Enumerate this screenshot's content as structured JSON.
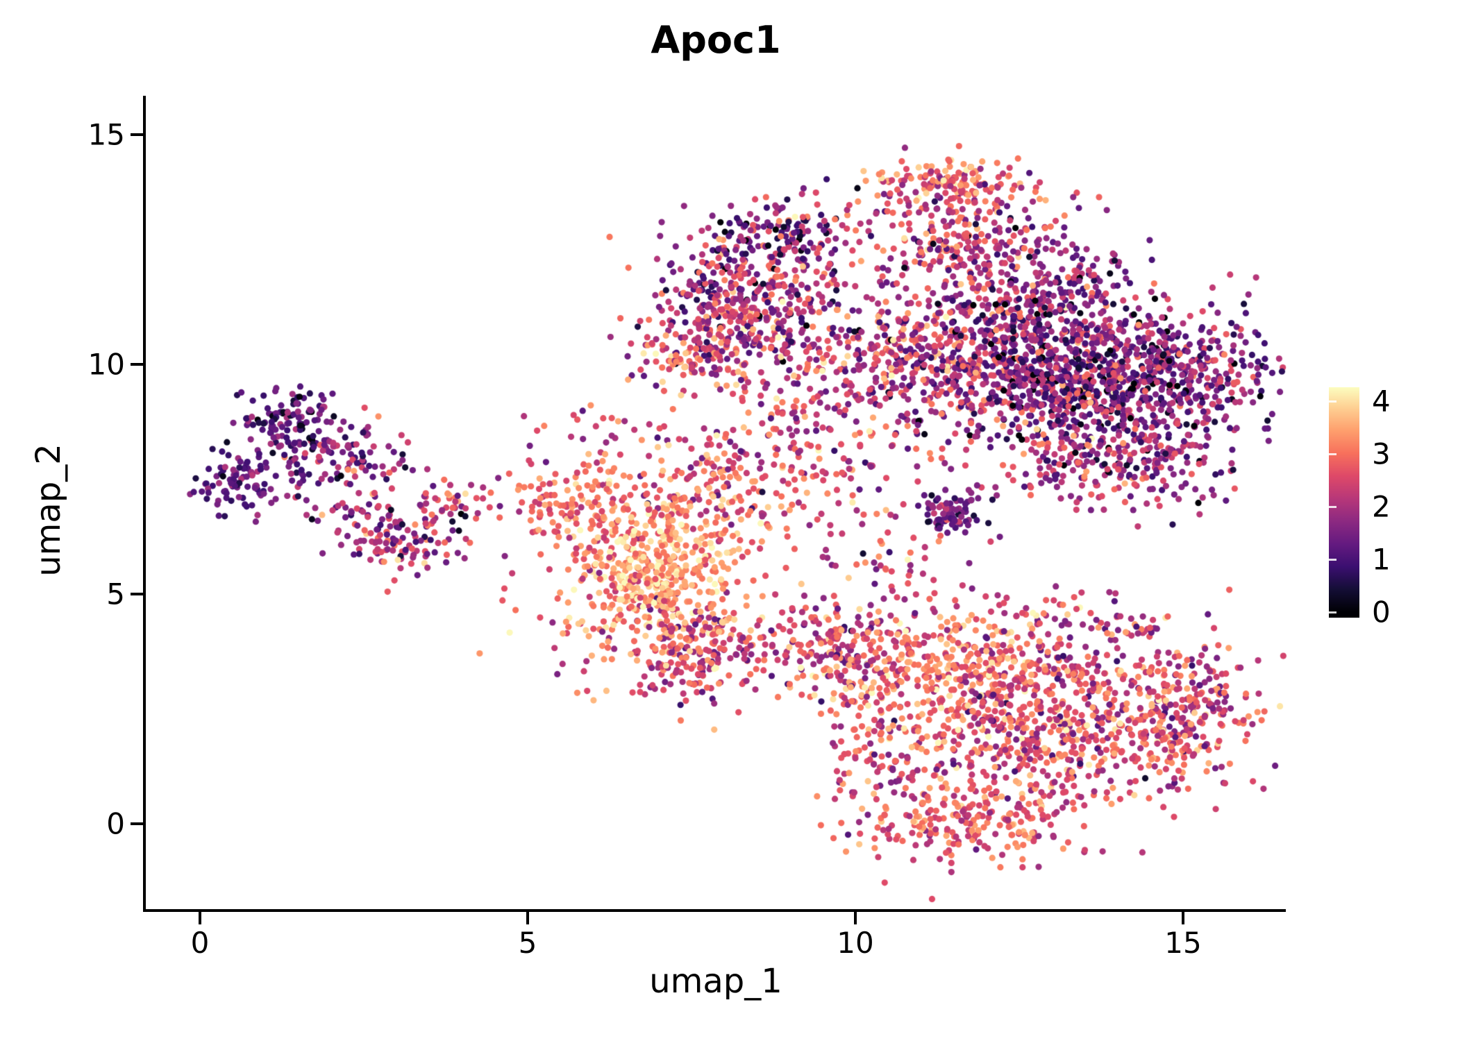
{
  "chart_data": {
    "type": "scatter",
    "title": "Apoc1",
    "xlabel": "umap_1",
    "ylabel": "umap_2",
    "xlim": [
      -0.83,
      16.57
    ],
    "ylim": [
      -1.89,
      15.8
    ],
    "x_ticks": [
      0,
      5,
      10,
      15
    ],
    "y_ticks": [
      0,
      5,
      10,
      15
    ],
    "grid": false,
    "background": "#ffffff",
    "axis_color": "#000000",
    "text_color": "#000000",
    "point_radius": 4.6,
    "seed": 7,
    "colorbar": {
      "ticks": [
        0,
        1,
        2,
        3,
        4
      ],
      "vmin": 0,
      "vmax": 4.3,
      "position": "right"
    },
    "colormap": {
      "name": "magma",
      "stops": [
        [
          0.0,
          "#000004"
        ],
        [
          0.1,
          "#140e36"
        ],
        [
          0.2,
          "#3b0f70"
        ],
        [
          0.3,
          "#641a80"
        ],
        [
          0.4,
          "#8c2981"
        ],
        [
          0.5,
          "#b73779"
        ],
        [
          0.6,
          "#de4968"
        ],
        [
          0.7,
          "#f7705c"
        ],
        [
          0.8,
          "#fe9f6d"
        ],
        [
          0.9,
          "#fecf92"
        ],
        [
          1.0,
          "#fcfdbf"
        ]
      ]
    },
    "clusters": [
      {
        "name": "left-lobe-top",
        "n": 120,
        "cx": 1.35,
        "cy": 8.7,
        "sx": 0.35,
        "sy": 0.4,
        "v": 1.0,
        "vs": 0.6
      },
      {
        "name": "left-lobe-west",
        "n": 80,
        "cx": 0.55,
        "cy": 7.4,
        "sx": 0.3,
        "sy": 0.3,
        "v": 1.2,
        "vs": 0.5
      },
      {
        "name": "left-arm",
        "n": 90,
        "cx": 2.2,
        "cy": 8.0,
        "sx": 0.45,
        "sy": 0.35,
        "v": 1.8,
        "vs": 0.7
      },
      {
        "name": "left-lobe-lower",
        "n": 130,
        "cx": 3.0,
        "cy": 6.3,
        "sx": 0.45,
        "sy": 0.4,
        "v": 1.9,
        "vs": 0.8
      },
      {
        "name": "left-tail",
        "n": 40,
        "cx": 3.9,
        "cy": 7.0,
        "sx": 0.35,
        "sy": 0.25,
        "v": 2.3,
        "vs": 0.7
      },
      {
        "name": "left-bridge",
        "n": 30,
        "cx": 1.7,
        "cy": 7.3,
        "sx": 0.5,
        "sy": 0.4,
        "v": 1.5,
        "vs": 0.6
      },
      {
        "name": "mid-bright-core",
        "n": 280,
        "cx": 7.0,
        "cy": 5.6,
        "sx": 0.55,
        "sy": 0.7,
        "v": 3.6,
        "vs": 0.5
      },
      {
        "name": "mid-halo",
        "n": 300,
        "cx": 6.8,
        "cy": 5.3,
        "sx": 1.0,
        "sy": 1.1,
        "v": 3.0,
        "vs": 0.6
      },
      {
        "name": "mid-lower-tail",
        "n": 200,
        "cx": 7.6,
        "cy": 3.8,
        "sx": 0.6,
        "sy": 0.5,
        "v": 2.4,
        "vs": 0.8
      },
      {
        "name": "mid-upper",
        "n": 180,
        "cx": 7.9,
        "cy": 7.3,
        "sx": 0.8,
        "sy": 0.6,
        "v": 2.7,
        "vs": 0.7
      },
      {
        "name": "mid-west-edge",
        "n": 60,
        "cx": 5.4,
        "cy": 7.0,
        "sx": 0.3,
        "sy": 0.45,
        "v": 2.9,
        "vs": 0.5
      },
      {
        "name": "mid-west-edge2",
        "n": 50,
        "cx": 6.1,
        "cy": 6.9,
        "sx": 0.35,
        "sy": 0.5,
        "v": 3.1,
        "vs": 0.6
      },
      {
        "name": "topmid-core",
        "n": 400,
        "cx": 8.4,
        "cy": 11.4,
        "sx": 0.75,
        "sy": 0.8,
        "v": 2.0,
        "vs": 0.9
      },
      {
        "name": "topmid-lower",
        "n": 160,
        "cx": 7.6,
        "cy": 10.3,
        "sx": 0.5,
        "sy": 0.5,
        "v": 2.5,
        "vs": 0.8
      },
      {
        "name": "topmid-crown",
        "n": 120,
        "cx": 8.8,
        "cy": 12.9,
        "sx": 0.55,
        "sy": 0.35,
        "v": 1.6,
        "vs": 0.8
      },
      {
        "name": "topmid-east",
        "n": 80,
        "cx": 9.7,
        "cy": 10.1,
        "sx": 0.6,
        "sy": 0.6,
        "v": 2.2,
        "vs": 0.8
      },
      {
        "name": "topright-crown",
        "n": 150,
        "cx": 11.5,
        "cy": 13.9,
        "sx": 0.65,
        "sy": 0.3,
        "v": 2.9,
        "vs": 0.7
      },
      {
        "name": "topright-main",
        "n": 270,
        "cx": 11.7,
        "cy": 12.6,
        "sx": 0.85,
        "sy": 0.6,
        "v": 2.1,
        "vs": 0.8
      },
      {
        "name": "topright-tail",
        "n": 90,
        "cx": 13.5,
        "cy": 11.8,
        "sx": 0.6,
        "sy": 0.5,
        "v": 1.6,
        "vs": 0.7
      },
      {
        "name": "right-dense-core",
        "n": 1000,
        "cx": 13.5,
        "cy": 9.8,
        "sx": 1.1,
        "sy": 0.75,
        "v": 1.5,
        "vs": 0.8
      },
      {
        "name": "right-west",
        "n": 360,
        "cx": 11.3,
        "cy": 10.2,
        "sx": 0.8,
        "sy": 0.7,
        "v": 2.3,
        "vs": 0.8
      },
      {
        "name": "right-south-edge",
        "n": 260,
        "cx": 14.0,
        "cy": 7.9,
        "sx": 0.9,
        "sy": 0.5,
        "v": 2.0,
        "vs": 0.8
      },
      {
        "name": "right-mini-dark",
        "n": 70,
        "cx": 11.45,
        "cy": 6.8,
        "sx": 0.22,
        "sy": 0.18,
        "v": 1.4,
        "vs": 0.5
      },
      {
        "name": "right-east-edge",
        "n": 130,
        "cx": 15.3,
        "cy": 9.9,
        "sx": 0.5,
        "sy": 0.7,
        "v": 1.7,
        "vs": 0.7
      },
      {
        "name": "right-north-bump",
        "n": 110,
        "cx": 12.3,
        "cy": 11.3,
        "sx": 0.7,
        "sy": 0.4,
        "v": 1.9,
        "vs": 0.8
      },
      {
        "name": "bottom-arm-west",
        "n": 200,
        "cx": 9.8,
        "cy": 3.8,
        "sx": 0.55,
        "sy": 0.55,
        "v": 2.4,
        "vs": 0.8
      },
      {
        "name": "bottom-bright",
        "n": 270,
        "cx": 11.5,
        "cy": 3.4,
        "sx": 0.8,
        "sy": 0.6,
        "v": 3.0,
        "vs": 0.7
      },
      {
        "name": "bottom-core",
        "n": 600,
        "cx": 13.0,
        "cy": 2.2,
        "sx": 1.1,
        "sy": 0.9,
        "v": 2.6,
        "vs": 0.7
      },
      {
        "name": "bottom-east",
        "n": 250,
        "cx": 15.0,
        "cy": 2.4,
        "sx": 0.55,
        "sy": 0.8,
        "v": 2.4,
        "vs": 0.7
      },
      {
        "name": "bottom-arc",
        "n": 230,
        "cx": 11.8,
        "cy": 0.1,
        "sx": 0.9,
        "sy": 0.5,
        "v": 2.7,
        "vs": 0.6
      },
      {
        "name": "bottom-west-rim",
        "n": 120,
        "cx": 10.3,
        "cy": 1.6,
        "sx": 0.45,
        "sy": 0.7,
        "v": 2.6,
        "vs": 0.7
      },
      {
        "name": "bottom-north",
        "n": 90,
        "cx": 13.3,
        "cy": 4.3,
        "sx": 0.8,
        "sy": 0.4,
        "v": 2.2,
        "vs": 0.8
      },
      {
        "name": "bridge-center",
        "n": 90,
        "cx": 10.3,
        "cy": 7.6,
        "sx": 0.9,
        "sy": 0.9,
        "v": 2.3,
        "vs": 0.8
      },
      {
        "name": "bridge-upper",
        "n": 60,
        "cx": 9.3,
        "cy": 8.8,
        "sx": 0.7,
        "sy": 0.5,
        "v": 2.4,
        "vs": 0.7
      },
      {
        "name": "bridge-lower",
        "n": 40,
        "cx": 10.6,
        "cy": 5.6,
        "sx": 0.6,
        "sy": 0.5,
        "v": 2.5,
        "vs": 0.7
      },
      {
        "name": "stray-upper-left",
        "n": 25,
        "cx": 5.9,
        "cy": 8.6,
        "sx": 0.5,
        "sy": 0.35,
        "v": 2.2,
        "vs": 0.7
      }
    ]
  }
}
